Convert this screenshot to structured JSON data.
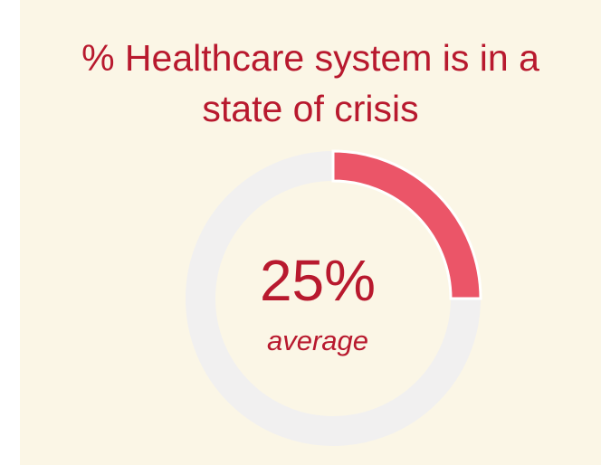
{
  "chart_data": {
    "type": "pie",
    "title_lines": [
      "% Healthcare system is in a",
      "state of crisis"
    ],
    "value": 25,
    "value_label": "25%",
    "caption": "average",
    "max": 100
  },
  "colors": {
    "background": "#fbf6e6",
    "accent": "#b8192e",
    "segment": "#eb5568",
    "track": "#f1f0f0"
  }
}
